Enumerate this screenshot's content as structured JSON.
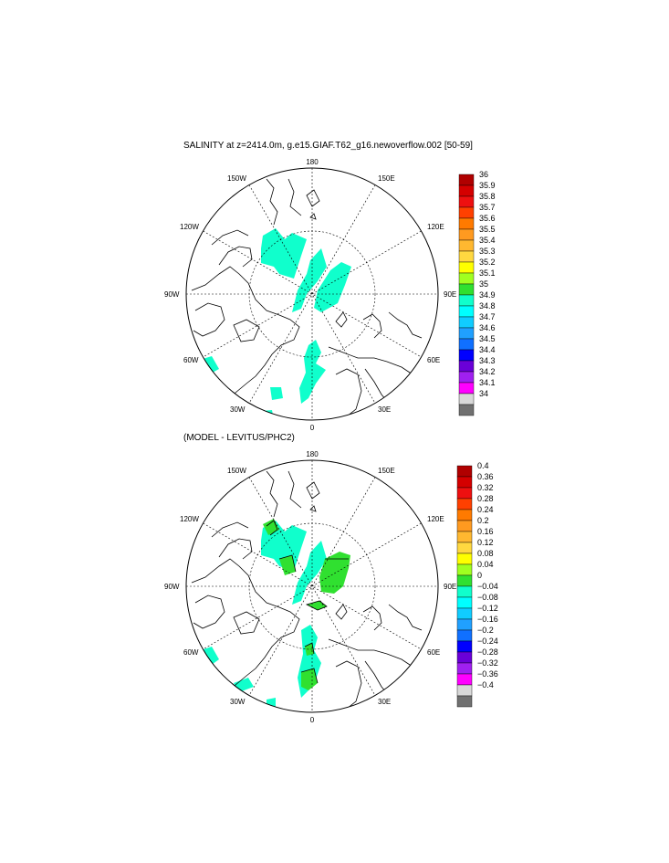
{
  "panels": [
    {
      "title": "SALINITY at z=2414.0m, g.e15.GIAF.T62_g16.newoverflow.002 [50-59]",
      "colorbar": {
        "labels": [
          "36",
          "35.9",
          "35.8",
          "35.7",
          "35.6",
          "35.5",
          "35.4",
          "35.3",
          "35.2",
          "35.1",
          "35",
          "34.9",
          "34.8",
          "34.7",
          "34.6",
          "34.5",
          "34.4",
          "34.3",
          "34.2",
          "34.1",
          "34"
        ],
        "colors": [
          "#b00000",
          "#d40000",
          "#ee1010",
          "#ff4000",
          "#ff7a00",
          "#ff9a20",
          "#ffb830",
          "#ffd840",
          "#ffff00",
          "#a0ff20",
          "#30e030",
          "#10ffcc",
          "#00ffff",
          "#10ccff",
          "#20a0ff",
          "#1070ff",
          "#0000ff",
          "#6a00d8",
          "#a020f0",
          "#ff00ff",
          "#d8d8d8",
          "#707070"
        ]
      }
    },
    {
      "title": "(MODEL - LEVITUS/PHC2)",
      "colorbar": {
        "labels": [
          "0.4",
          "0.36",
          "0.32",
          "0.28",
          "0.24",
          "0.2",
          "0.16",
          "0.12",
          "0.08",
          "0.04",
          "0",
          "−0.04",
          "−0.08",
          "−0.12",
          "−0.16",
          "−0.2",
          "−0.24",
          "−0.28",
          "−0.32",
          "−0.36",
          "−0.4"
        ],
        "colors": [
          "#b00000",
          "#d40000",
          "#ee1010",
          "#ff4000",
          "#ff7a00",
          "#ff9a20",
          "#ffb830",
          "#ffd840",
          "#ffff00",
          "#a0ff20",
          "#30e030",
          "#10ffcc",
          "#00ffff",
          "#10ccff",
          "#20a0ff",
          "#1070ff",
          "#0000ff",
          "#6a00d8",
          "#a020f0",
          "#ff00ff",
          "#d8d8d8",
          "#707070"
        ]
      }
    }
  ],
  "map_labels": {
    "top": "180",
    "bottom": "0",
    "left": "90W",
    "right": "90E",
    "ul1": "150W",
    "ul2": "120W",
    "ur1": "150E",
    "ur2": "120E",
    "ll1": "60W",
    "ll2": "30W",
    "lr1": "60E",
    "lr2": "30E"
  },
  "colors": {
    "fill_teal": "#10ffcc",
    "fill_green": "#30e030",
    "line": "#000000"
  }
}
